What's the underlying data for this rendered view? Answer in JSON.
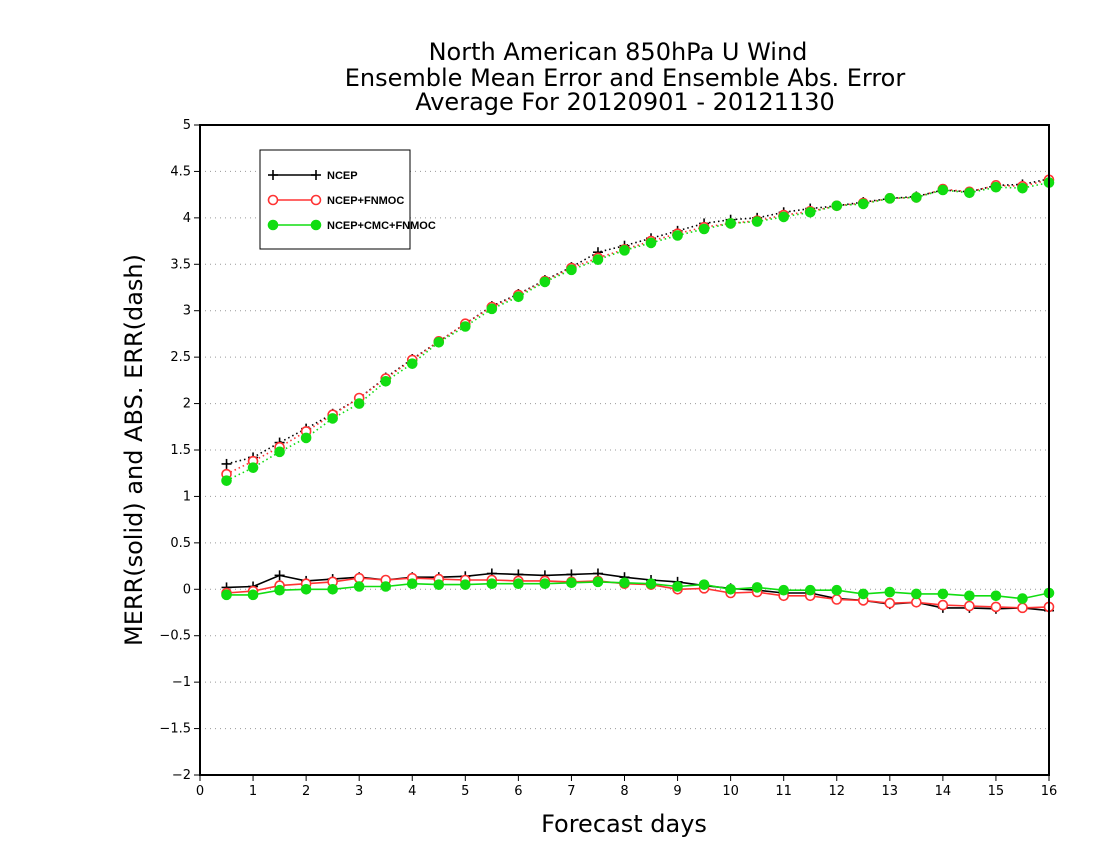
{
  "chart_data": {
    "type": "line",
    "title_lines": [
      "North American 850hPa U Wind",
      "Ensemble Mean Error and Ensemble Abs. Error",
      "Average For 20120901 - 20121130"
    ],
    "xlabel": "Forecast days",
    "ylabel": "MERR(solid) and ABS. ERR(dash)",
    "xlim": [
      0,
      16
    ],
    "ylim": [
      -2,
      5
    ],
    "x_ticks": [
      "0",
      "1",
      "2",
      "3",
      "4",
      "5",
      "6",
      "7",
      "8",
      "9",
      "10",
      "11",
      "12",
      "13",
      "14",
      "15",
      "16"
    ],
    "y_ticks": [
      "5",
      "4.5",
      "4",
      "3.5",
      "3",
      "2.5",
      "2",
      "1.5",
      "1",
      "0.5",
      "0",
      "−0.5",
      "−1",
      "−1.5",
      "−2"
    ],
    "y_tick_values": [
      5,
      4.5,
      4,
      3.5,
      3,
      2.5,
      2,
      1.5,
      1,
      0.5,
      0,
      -0.5,
      -1,
      -1.5,
      -2
    ],
    "grid": "horizontal-dotted",
    "legend_position": "top-left",
    "x": [
      0.5,
      1,
      1.5,
      2,
      2.5,
      3,
      3.5,
      4,
      4.5,
      5,
      5.5,
      6,
      6.5,
      7,
      7.5,
      8,
      8.5,
      9,
      9.5,
      10,
      10.5,
      11,
      11.5,
      12,
      12.5,
      13,
      13.5,
      14,
      14.5,
      15,
      15.5,
      16
    ],
    "series": [
      {
        "name": "NCEP",
        "color": "#000000",
        "marker": "plus",
        "abs_error": [
          1.35,
          1.42,
          1.58,
          1.73,
          1.89,
          2.06,
          2.28,
          2.48,
          2.67,
          2.86,
          3.05,
          3.18,
          3.33,
          3.47,
          3.63,
          3.7,
          3.78,
          3.86,
          3.94,
          3.98,
          4.0,
          4.06,
          4.1,
          4.13,
          4.17,
          4.21,
          4.23,
          4.3,
          4.28,
          4.35,
          4.36,
          4.42
        ],
        "mean_error": [
          0.02,
          0.03,
          0.15,
          0.09,
          0.11,
          0.13,
          0.1,
          0.13,
          0.13,
          0.14,
          0.17,
          0.16,
          0.15,
          0.16,
          0.17,
          0.13,
          0.1,
          0.08,
          0.04,
          0.01,
          -0.01,
          -0.04,
          -0.04,
          -0.1,
          -0.12,
          -0.16,
          -0.14,
          -0.2,
          -0.2,
          -0.21,
          -0.2,
          -0.23
        ]
      },
      {
        "name": "NCEP+FNMOC",
        "color": "#ff3333",
        "marker": "open-circle",
        "abs_error": [
          1.24,
          1.38,
          1.53,
          1.7,
          1.88,
          2.06,
          2.27,
          2.47,
          2.67,
          2.86,
          3.04,
          3.17,
          3.32,
          3.46,
          3.57,
          3.66,
          3.75,
          3.83,
          3.9,
          3.94,
          3.97,
          4.03,
          4.07,
          4.13,
          4.16,
          4.21,
          4.22,
          4.31,
          4.28,
          4.35,
          4.34,
          4.41
        ],
        "mean_error": [
          -0.04,
          -0.02,
          0.04,
          0.06,
          0.08,
          0.12,
          0.1,
          0.12,
          0.11,
          0.1,
          0.1,
          0.09,
          0.09,
          0.08,
          0.09,
          0.06,
          0.05,
          0.0,
          0.01,
          -0.04,
          -0.03,
          -0.07,
          -0.07,
          -0.11,
          -0.12,
          -0.15,
          -0.14,
          -0.17,
          -0.18,
          -0.19,
          -0.2,
          -0.19
        ]
      },
      {
        "name": "NCEP+CMC+FNMOC",
        "color": "#11dd11",
        "marker": "filled-circle",
        "abs_error": [
          1.17,
          1.31,
          1.48,
          1.63,
          1.84,
          2.0,
          2.24,
          2.43,
          2.66,
          2.83,
          3.02,
          3.15,
          3.31,
          3.44,
          3.55,
          3.65,
          3.73,
          3.81,
          3.88,
          3.94,
          3.96,
          4.01,
          4.06,
          4.13,
          4.15,
          4.21,
          4.22,
          4.3,
          4.27,
          4.33,
          4.32,
          4.38
        ],
        "mean_error": [
          -0.06,
          -0.06,
          -0.01,
          0.0,
          0.0,
          0.03,
          0.03,
          0.06,
          0.05,
          0.05,
          0.06,
          0.06,
          0.06,
          0.07,
          0.08,
          0.07,
          0.06,
          0.03,
          0.05,
          0.0,
          0.02,
          -0.01,
          -0.01,
          -0.01,
          -0.05,
          -0.03,
          -0.05,
          -0.05,
          -0.07,
          -0.07,
          -0.1,
          -0.04
        ]
      }
    ]
  }
}
